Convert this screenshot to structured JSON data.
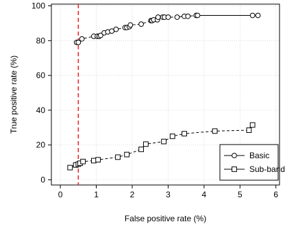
{
  "chart_data": {
    "type": "line",
    "xlabel": "False positive rate (%)",
    "ylabel": "True positive rate (%)",
    "xlim": [
      -0.25,
      6.1
    ],
    "ylim": [
      -3,
      101
    ],
    "xticks": [
      0,
      1,
      2,
      3,
      4,
      5,
      6
    ],
    "yticks": [
      0,
      20,
      40,
      60,
      80,
      100
    ],
    "grid": true,
    "legend_position": "bottom-right",
    "threshold_line": {
      "x": 0.5,
      "style": "dashed",
      "color": "#e8292b"
    },
    "series": [
      {
        "name": "Basic",
        "marker": "circle",
        "line_style": "dashed-then-solid",
        "x": [
          0.45,
          0.5,
          0.6,
          0.93,
          1.03,
          1.08,
          1.12,
          1.22,
          1.32,
          1.43,
          1.55,
          1.8,
          1.85,
          1.92,
          1.95,
          2.25,
          2.52,
          2.55,
          2.6,
          2.7,
          2.72,
          2.85,
          2.9,
          3.0,
          3.25,
          3.45,
          3.55,
          3.78,
          3.82,
          5.35,
          5.5
        ],
        "y": [
          79,
          79,
          81,
          82.5,
          82.5,
          82.5,
          83,
          84.5,
          85,
          85.5,
          86.5,
          87.5,
          87.5,
          88,
          89,
          89.5,
          91.5,
          91.5,
          92,
          92,
          93.5,
          93.5,
          93.5,
          93.5,
          93.5,
          94,
          94,
          94.5,
          94.5,
          94.5,
          94.5
        ]
      },
      {
        "name": "Sub-band",
        "marker": "square",
        "line_style": "dashed",
        "x": [
          0.27,
          0.43,
          0.5,
          0.55,
          0.63,
          0.93,
          1.05,
          1.6,
          1.85,
          2.25,
          2.38,
          2.88,
          3.12,
          3.45,
          4.3,
          5.25,
          5.35
        ],
        "y": [
          7,
          8.5,
          9,
          9.5,
          10.5,
          11,
          11.5,
          13,
          14.5,
          17.5,
          20.5,
          22,
          25,
          26.5,
          28,
          28.5,
          31.5
        ]
      }
    ]
  }
}
